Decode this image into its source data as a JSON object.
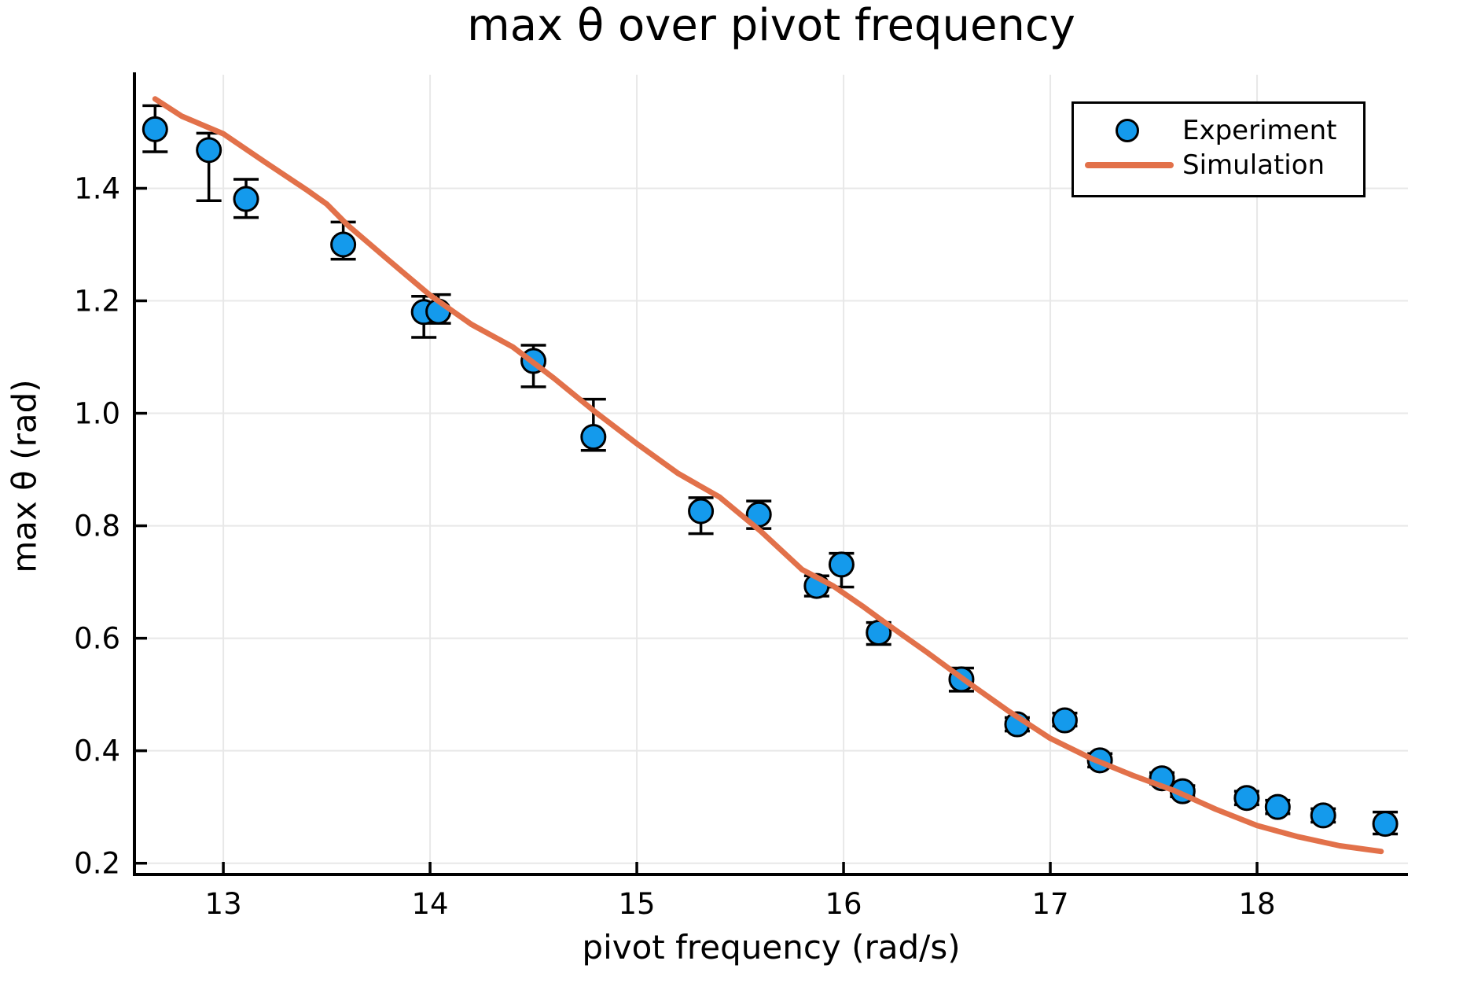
{
  "chart_data": {
    "type": "scatter",
    "title": "max θ over pivot frequency",
    "xlabel": "pivot frequency (rad/s)",
    "ylabel": "max θ (rad)",
    "xlim": [
      12.57,
      18.73
    ],
    "ylim": [
      0.18,
      1.602
    ],
    "x_ticks": [
      "13",
      "14",
      "15",
      "16",
      "17",
      "18"
    ],
    "y_ticks": [
      "0.2",
      "0.4",
      "0.6",
      "0.8",
      "1.0",
      "1.2",
      "1.4"
    ],
    "grid": true,
    "legend_position": "top-right",
    "colors": {
      "experiment": "#149AEC",
      "simulation": "#E2714A",
      "grid": "#E8E8E8",
      "axis": "#000000"
    },
    "series": [
      {
        "name": "Experiment",
        "type": "scatter",
        "color": "#149AEC",
        "marker": "circle",
        "points": [
          {
            "x": 12.67,
            "y": 1.505,
            "err_up": 0.042,
            "err_down": 0.04
          },
          {
            "x": 12.93,
            "y": 1.468,
            "err_up": 0.03,
            "err_down": 0.09
          },
          {
            "x": 13.11,
            "y": 1.381,
            "err_up": 0.035,
            "err_down": 0.033
          },
          {
            "x": 13.58,
            "y": 1.3,
            "err_up": 0.04,
            "err_down": 0.026
          },
          {
            "x": 13.97,
            "y": 1.18,
            "err_up": 0.028,
            "err_down": 0.045
          },
          {
            "x": 14.04,
            "y": 1.181,
            "err_up": 0.03,
            "err_down": 0.021
          },
          {
            "x": 14.5,
            "y": 1.093,
            "err_up": 0.028,
            "err_down": 0.046
          },
          {
            "x": 14.79,
            "y": 0.958,
            "err_up": 0.067,
            "err_down": 0.024
          },
          {
            "x": 15.31,
            "y": 0.826,
            "err_up": 0.024,
            "err_down": 0.04
          },
          {
            "x": 15.59,
            "y": 0.82,
            "err_up": 0.024,
            "err_down": 0.025
          },
          {
            "x": 15.87,
            "y": 0.693,
            "err_up": 0.018,
            "err_down": 0.018
          },
          {
            "x": 15.99,
            "y": 0.731,
            "err_up": 0.02,
            "err_down": 0.04
          },
          {
            "x": 16.17,
            "y": 0.61,
            "err_up": 0.018,
            "err_down": 0.021
          },
          {
            "x": 16.57,
            "y": 0.527,
            "err_up": 0.02,
            "err_down": 0.021
          },
          {
            "x": 16.84,
            "y": 0.447,
            "err_up": 0.012,
            "err_down": 0.012
          },
          {
            "x": 17.07,
            "y": 0.454,
            "err_up": 0.013,
            "err_down": 0.01
          },
          {
            "x": 17.24,
            "y": 0.383,
            "err_up": 0.012,
            "err_down": 0.012
          },
          {
            "x": 17.54,
            "y": 0.351,
            "err_up": 0.01,
            "err_down": 0.01
          },
          {
            "x": 17.64,
            "y": 0.328,
            "err_up": 0.01,
            "err_down": 0.01
          },
          {
            "x": 17.95,
            "y": 0.316,
            "err_up": 0.012,
            "err_down": 0.012
          },
          {
            "x": 18.1,
            "y": 0.3,
            "err_up": 0.012,
            "err_down": 0.012
          },
          {
            "x": 18.32,
            "y": 0.285,
            "err_up": 0.012,
            "err_down": 0.012
          },
          {
            "x": 18.62,
            "y": 0.27,
            "err_up": 0.021,
            "err_down": 0.018
          }
        ]
      },
      {
        "name": "Simulation",
        "type": "line",
        "color": "#E2714A",
        "x": [
          12.67,
          12.8,
          13.0,
          13.2,
          13.4,
          13.5,
          13.6,
          13.8,
          14.0,
          14.2,
          14.4,
          14.6,
          14.8,
          15.0,
          15.2,
          15.4,
          15.6,
          15.8,
          15.95,
          16.1,
          16.2,
          16.4,
          16.6,
          16.8,
          17.0,
          17.2,
          17.4,
          17.6,
          17.8,
          18.0,
          18.2,
          18.4,
          18.6
        ],
        "y": [
          1.559,
          1.528,
          1.497,
          1.447,
          1.398,
          1.372,
          1.335,
          1.272,
          1.21,
          1.158,
          1.118,
          1.062,
          1.002,
          0.946,
          0.893,
          0.851,
          0.79,
          0.722,
          0.693,
          0.655,
          0.628,
          0.576,
          0.522,
          0.47,
          0.422,
          0.386,
          0.356,
          0.329,
          0.296,
          0.267,
          0.247,
          0.231,
          0.221
        ]
      }
    ]
  }
}
